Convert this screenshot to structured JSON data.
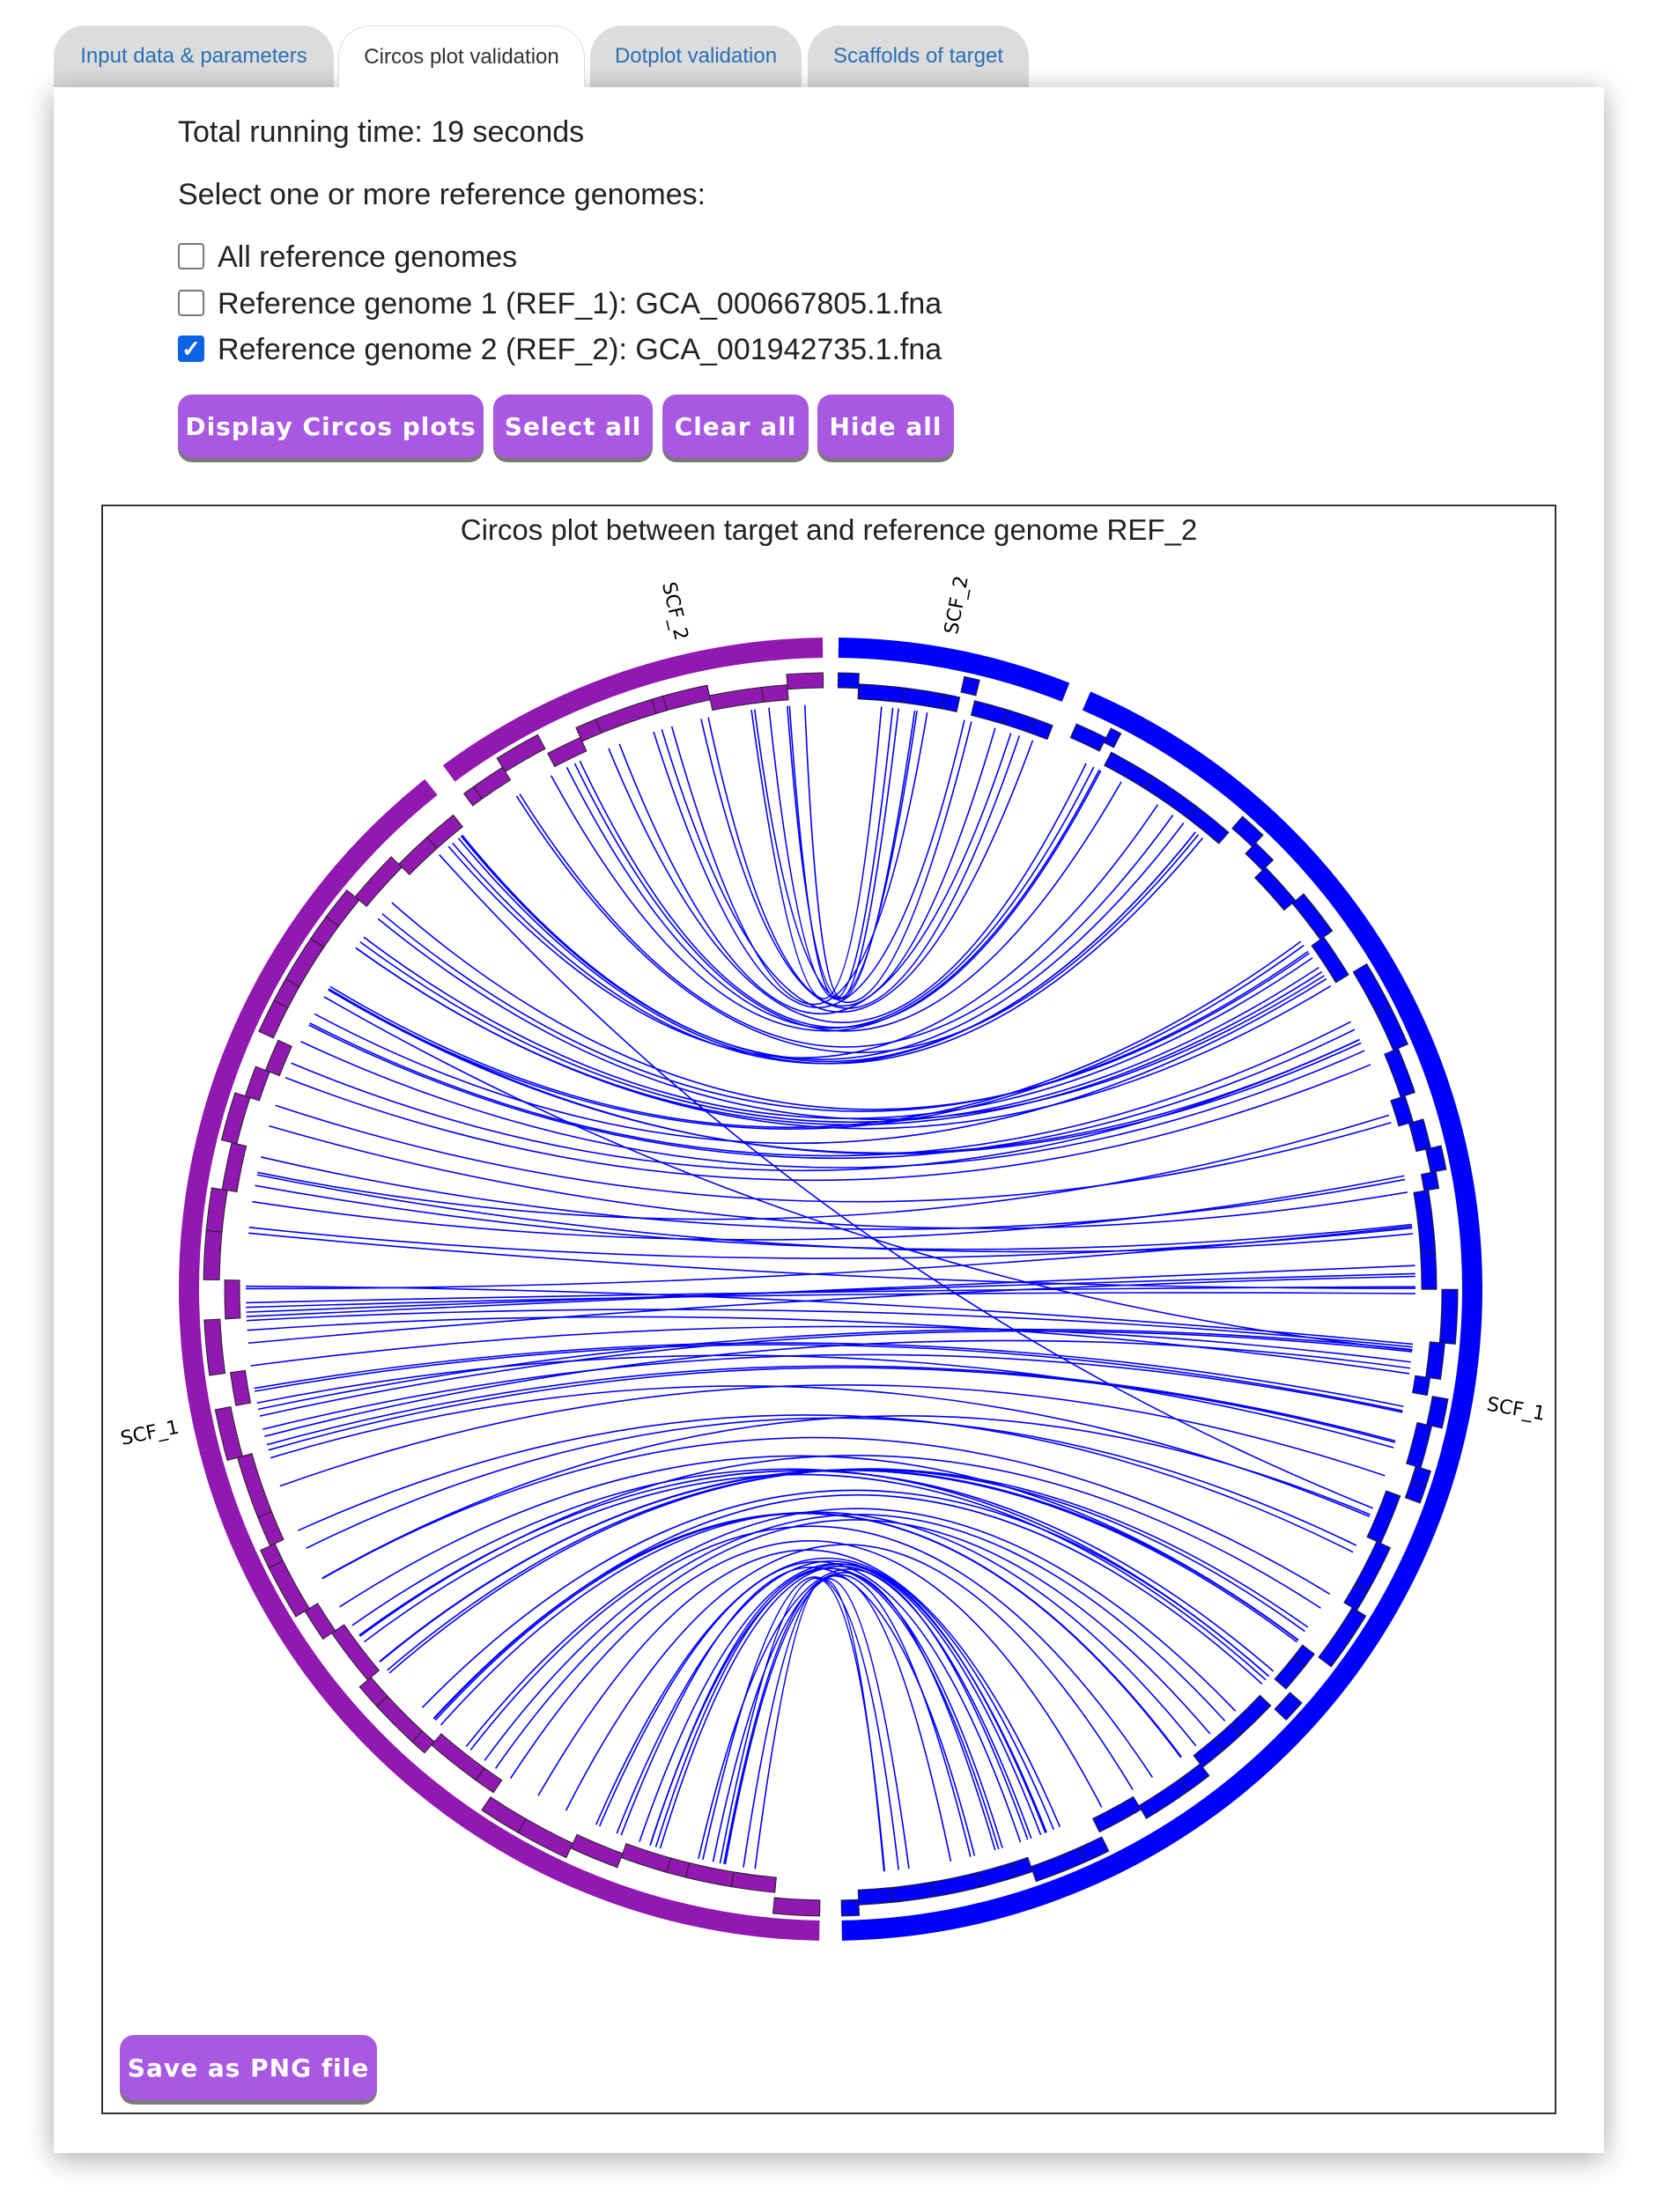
{
  "tabs": [
    {
      "label": "Input data & parameters"
    },
    {
      "label": "Circos plot validation"
    },
    {
      "label": "Dotplot validation"
    },
    {
      "label": "Scaffolds of target"
    }
  ],
  "running_time": "Total running time: 19 seconds",
  "select_prompt": "Select one or more reference genomes:",
  "checkboxes": [
    {
      "label": "All reference genomes",
      "checked": false
    },
    {
      "label": "Reference genome 1 (REF_1): GCA_000667805.1.fna",
      "checked": false
    },
    {
      "label": "Reference genome 2 (REF_2): GCA_001942735.1.fna",
      "checked": true
    }
  ],
  "buttons": {
    "display": "Display Circos plots",
    "select_all": "Select all",
    "clear_all": "Clear all",
    "hide_all": "Hide all",
    "save_png": "Save as PNG file"
  },
  "chart_data": {
    "type": "circos",
    "title": "Circos plot between target and reference genome REF_2",
    "segments": [
      {
        "name": "SCF_1",
        "color": "#9118b0"
      },
      {
        "name": "SCF_2",
        "color": "#9118b0"
      },
      {
        "name": "SCF_2",
        "color": "#0000ff"
      },
      {
        "name": "SCF_1",
        "color": "#0000ff"
      }
    ],
    "link_color": "#0000ff"
  },
  "colors": {
    "accent": "#a958e2",
    "tab_link": "#2a6fb5"
  }
}
